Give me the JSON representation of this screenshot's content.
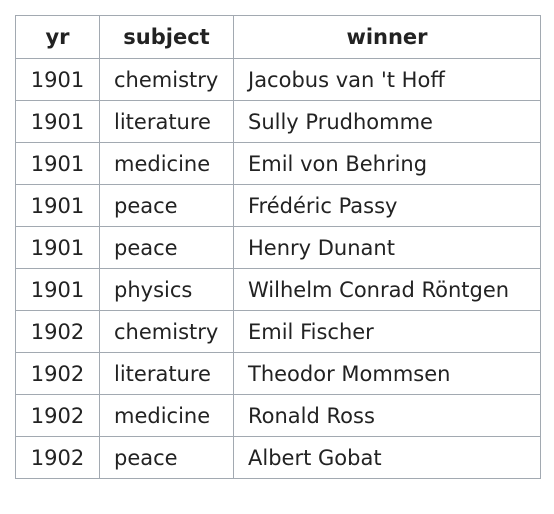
{
  "table": {
    "headers": [
      "yr",
      "subject",
      "winner"
    ],
    "rows": [
      [
        "1901",
        "chemistry",
        "Jacobus van 't Hoff"
      ],
      [
        "1901",
        "literature",
        "Sully Prudhomme"
      ],
      [
        "1901",
        "medicine",
        "Emil von Behring"
      ],
      [
        "1901",
        "peace",
        "Frédéric Passy"
      ],
      [
        "1901",
        "peace",
        "Henry Dunant"
      ],
      [
        "1901",
        "physics",
        "Wilhelm Conrad Röntgen"
      ],
      [
        "1902",
        "chemistry",
        "Emil Fischer"
      ],
      [
        "1902",
        "literature",
        "Theodor Mommsen"
      ],
      [
        "1902",
        "medicine",
        "Ronald Ross"
      ],
      [
        "1902",
        "peace",
        "Albert Gobat"
      ]
    ]
  }
}
